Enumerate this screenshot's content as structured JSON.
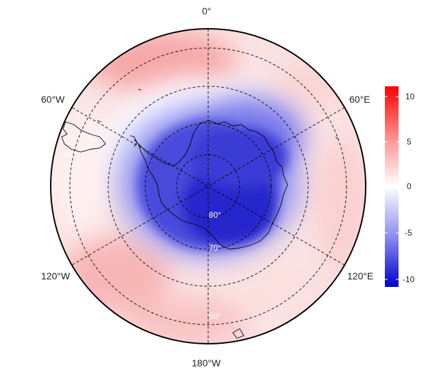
{
  "map": {
    "projection": "south-polar-stereographic",
    "longitude_labels": [
      {
        "id": "0",
        "text": "0°"
      },
      {
        "id": "60e",
        "text": "60°E"
      },
      {
        "id": "120e",
        "text": "120°E"
      },
      {
        "id": "180",
        "text": "180°W"
      },
      {
        "id": "120w",
        "text": "120°W"
      },
      {
        "id": "60w",
        "text": "60°W"
      }
    ],
    "latitude_labels": [
      {
        "id": "80",
        "text": "80°"
      },
      {
        "id": "70",
        "text": "70°"
      },
      {
        "id": "50",
        "text": "50°"
      }
    ],
    "field_description": "anomaly field, negative over Antarctica, positive in surrounding mid-latitudes",
    "gridline_style": "dashed"
  },
  "colorbar": {
    "ticks": [
      "10",
      "5",
      "0",
      "-5",
      "-10"
    ],
    "range": [
      -11,
      11
    ],
    "colors": {
      "negative": "#0000cc",
      "neutral": "#ffffff",
      "positive": "#ff0000"
    }
  }
}
